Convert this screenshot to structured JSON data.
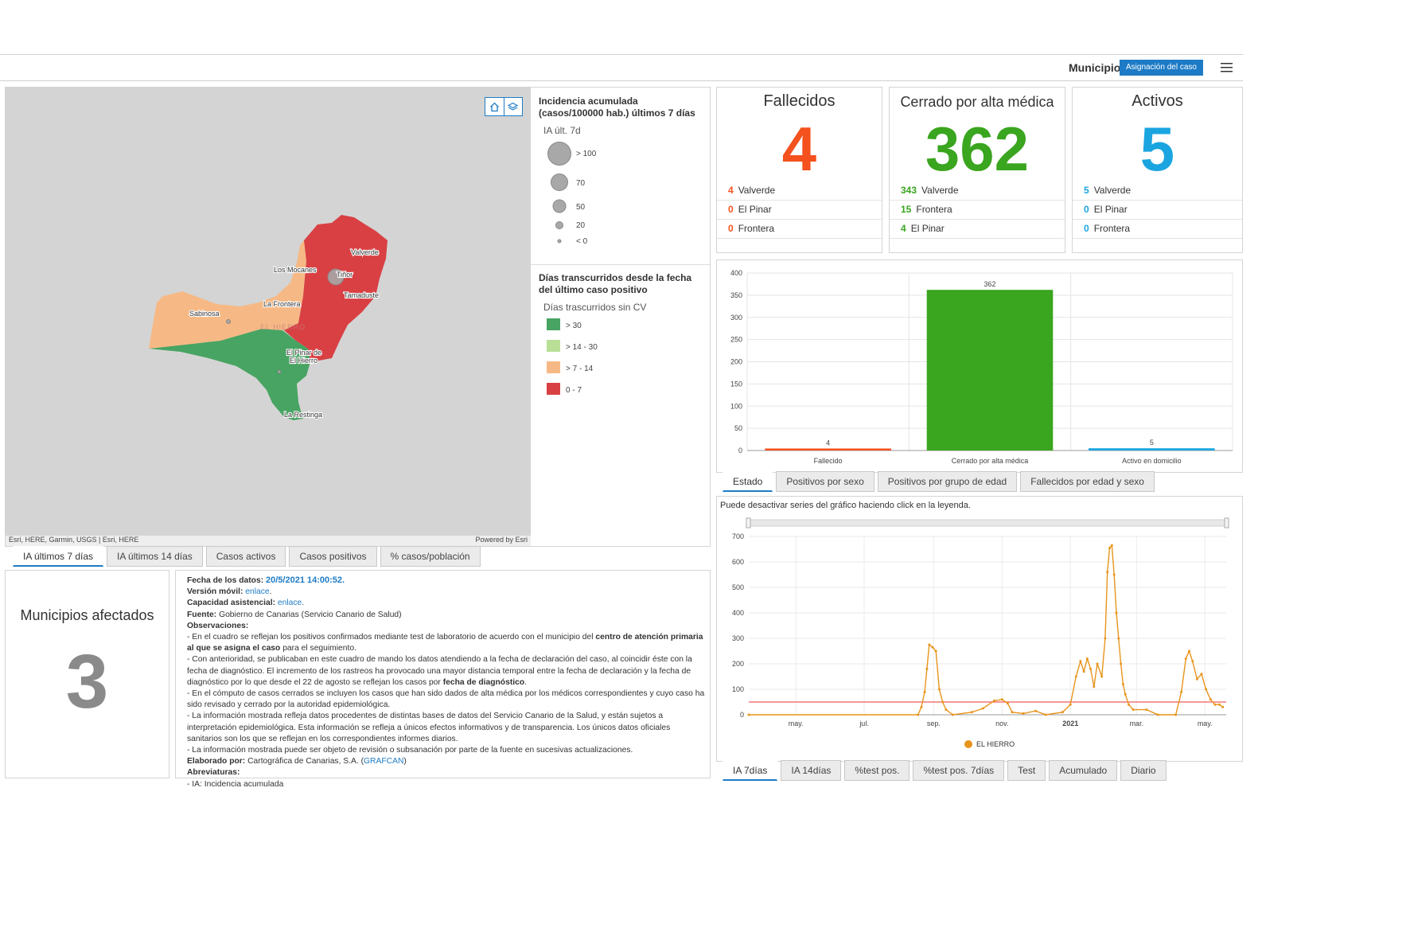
{
  "header": {
    "municipio_label": "Municipio",
    "assign_button": "Asignación del caso"
  },
  "colors": {
    "accent": "#1d7bc6",
    "fallecidos": "#f4511e",
    "cerrado": "#3aa51f",
    "activos": "#1aa5e0",
    "red_zone": "#d94043",
    "orange_zone": "#f6b985",
    "green_zone": "#48a462",
    "line": "#e8941c",
    "threshold": "#ef5a5a"
  },
  "map": {
    "labels": [
      "Valverde",
      "Los Mocanes",
      "Tiñor",
      "Tamaduste",
      "La Frontera",
      "Sabinosa",
      "El Pinar de El Hierro",
      "La Restinga",
      "EL HIERRO"
    ],
    "attribution": "Esri, HERE, Garmin, USGS | Esri, HERE",
    "powered": "Powered by Esri",
    "home_icon": "home-icon",
    "layers_icon": "layers-icon"
  },
  "legend": {
    "ia_title": "Incidencia acumulada (casos/100000 hab.) últimos 7 días",
    "ia_sub": "IA últ. 7d",
    "ia_items": [
      "> 100",
      "70",
      "50",
      "20",
      "< 0"
    ],
    "dias_title": "Días transcurridos desde la fecha del último caso positivo",
    "dias_sub": "Días trascurridos sin CV",
    "dias_items": [
      {
        "label": "> 30",
        "color": "#48a462"
      },
      {
        "label": "> 14 - 30",
        "color": "#b9df97"
      },
      {
        "label": "> 7 - 14",
        "color": "#f6b985"
      },
      {
        "label": "0 - 7",
        "color": "#d94043"
      }
    ]
  },
  "map_tabs": [
    "IA últimos 7 días",
    "IA últimos 14 días",
    "Casos activos",
    "Casos positivos",
    "% casos/población"
  ],
  "kpis": [
    {
      "title": "Fallecidos",
      "value": "4",
      "color": "#f4511e",
      "rows": [
        [
          "4",
          "Valverde"
        ],
        [
          "0",
          "El Pinar"
        ],
        [
          "0",
          "Frontera"
        ]
      ]
    },
    {
      "title": "Cerrado por alta médica",
      "value": "362",
      "color": "#3aa51f",
      "rows": [
        [
          "343",
          "Valverde"
        ],
        [
          "15",
          "Frontera"
        ],
        [
          "4",
          "El Pinar"
        ]
      ]
    },
    {
      "title": "Activos",
      "value": "5",
      "color": "#1aa5e0",
      "rows": [
        [
          "5",
          "Valverde"
        ],
        [
          "0",
          "El Pinar"
        ],
        [
          "0",
          "Frontera"
        ]
      ]
    }
  ],
  "bar_tabs": [
    "Estado",
    "Positivos por sexo",
    "Positivos por grupo de edad",
    "Fallecidos por edad y sexo"
  ],
  "line_tabs": [
    "IA 7días",
    "IA 14días",
    "%test pos.",
    "%test pos. 7días",
    "Test",
    "Acumulado",
    "Diario"
  ],
  "line_note": "Puede desactivar series del gráfico haciendo click en la leyenda.",
  "municipios": {
    "title": "Municipios afectados",
    "value": "3"
  },
  "info": {
    "fecha_label": "Fecha de los datos:",
    "fecha_value": "20/5/2021 14:00:52.",
    "movil_label": "Versión móvil:",
    "movil_link": "enlace",
    "capacidad_label": "Capacidad asistencial:",
    "capacidad_link": "enlace",
    "fuente_label": "Fuente:",
    "fuente_value": "Gobierno de Canarias (Servicio Canario de Salud)",
    "obs_label": "Observaciones:",
    "obs1_a": "- En el cuadro se reflejan los positivos confirmados mediante test de laboratorio de acuerdo con el municipio del ",
    "obs1_b": "centro de atención primaria al que se asigna el caso",
    "obs1_c": " para el seguimiento.",
    "obs2_a": "- Con anterioridad, se publicaban en este cuadro de mando los datos atendiendo a la fecha de declaración del caso, al coincidir éste con la fecha de diagnóstico. El incremento de los rastreos ha provocado una mayor distancia temporal entre la fecha de declaración y la fecha de diagnóstico por lo que desde el 22 de agosto se reflejan los casos por ",
    "obs2_b": "fecha de diagnóstico",
    "obs2_c": ".",
    "obs3": "- En el cómputo de casos cerrados se incluyen los casos que han sido dados de alta médica por los médicos correspondientes y cuyo caso ha sido revisado y cerrado por la autoridad epidemiológica.",
    "obs4": "- La información mostrada refleja datos procedentes de distintas bases de datos del Servicio Canario de la Salud, y están sujetos a interpretación epidemiológica. Esta información se refleja a únicos efectos informativos y de transparencia. Los únicos datos oficiales sanitarios son los que se reflejan en los correspondientes informes diarios.",
    "obs5": "- La información mostrada puede ser objeto de revisión o subsanación por parte de la fuente en sucesivas actualizaciones.",
    "elaborado_label": "Elaborado por:",
    "elaborado_value": "Cartográfica de Canarias, S.A. (",
    "elaborado_link": "GRAFCAN",
    "elaborado_end": ")",
    "abrev_label": "Abreviaturas:",
    "abrev_value": "- IA: Incidencia acumulada"
  },
  "chart_data": [
    {
      "type": "bar",
      "categories": [
        "Fallecido",
        "Cerrado por alta médica",
        "Activo en domicilio"
      ],
      "values": [
        4,
        362,
        5
      ],
      "colors": [
        "#f4511e",
        "#3aa51f",
        "#1aa5e0"
      ],
      "ylim": [
        0,
        400
      ],
      "yticks": [
        0,
        50,
        100,
        150,
        200,
        250,
        300,
        350,
        400
      ],
      "grid": true
    },
    {
      "type": "line",
      "x_unit": "date",
      "xticks": [
        "may.",
        "jul.",
        "sep.",
        "nov.",
        "2021",
        "mar.",
        "may."
      ],
      "ylim": [
        0,
        700
      ],
      "yticks": [
        0,
        100,
        200,
        300,
        400,
        500,
        600,
        700
      ],
      "threshold": 50,
      "series": [
        {
          "name": "EL HIERRO",
          "color": "#e8941c",
          "points": [
            [
              "2020-03-20",
              0
            ],
            [
              "2020-08-18",
              0
            ],
            [
              "2020-08-21",
              30
            ],
            [
              "2020-08-24",
              90
            ],
            [
              "2020-08-26",
              180
            ],
            [
              "2020-08-28",
              275
            ],
            [
              "2020-08-31",
              265
            ],
            [
              "2020-09-03",
              250
            ],
            [
              "2020-09-06",
              100
            ],
            [
              "2020-09-09",
              50
            ],
            [
              "2020-09-12",
              20
            ],
            [
              "2020-09-18",
              0
            ],
            [
              "2020-10-05",
              10
            ],
            [
              "2020-10-15",
              25
            ],
            [
              "2020-10-25",
              55
            ],
            [
              "2020-11-01",
              60
            ],
            [
              "2020-11-06",
              45
            ],
            [
              "2020-11-10",
              10
            ],
            [
              "2020-11-20",
              5
            ],
            [
              "2020-12-01",
              15
            ],
            [
              "2020-12-10",
              0
            ],
            [
              "2020-12-25",
              10
            ],
            [
              "2021-01-01",
              40
            ],
            [
              "2021-01-06",
              150
            ],
            [
              "2021-01-10",
              210
            ],
            [
              "2021-01-13",
              170
            ],
            [
              "2021-01-16",
              220
            ],
            [
              "2021-01-19",
              180
            ],
            [
              "2021-01-22",
              110
            ],
            [
              "2021-01-25",
              200
            ],
            [
              "2021-01-29",
              150
            ],
            [
              "2021-02-01",
              300
            ],
            [
              "2021-02-03",
              560
            ],
            [
              "2021-02-05",
              655
            ],
            [
              "2021-02-07",
              665
            ],
            [
              "2021-02-09",
              550
            ],
            [
              "2021-02-11",
              400
            ],
            [
              "2021-02-13",
              300
            ],
            [
              "2021-02-15",
              200
            ],
            [
              "2021-02-17",
              120
            ],
            [
              "2021-02-19",
              80
            ],
            [
              "2021-02-22",
              40
            ],
            [
              "2021-02-26",
              20
            ],
            [
              "2021-03-10",
              20
            ],
            [
              "2021-03-20",
              0
            ],
            [
              "2021-04-05",
              0
            ],
            [
              "2021-04-10",
              90
            ],
            [
              "2021-04-14",
              220
            ],
            [
              "2021-04-17",
              250
            ],
            [
              "2021-04-20",
              210
            ],
            [
              "2021-04-24",
              140
            ],
            [
              "2021-04-28",
              160
            ],
            [
              "2021-05-02",
              100
            ],
            [
              "2021-05-06",
              60
            ],
            [
              "2021-05-10",
              40
            ],
            [
              "2021-05-14",
              40
            ],
            [
              "2021-05-17",
              30
            ]
          ]
        }
      ],
      "legend": "bottom"
    }
  ]
}
